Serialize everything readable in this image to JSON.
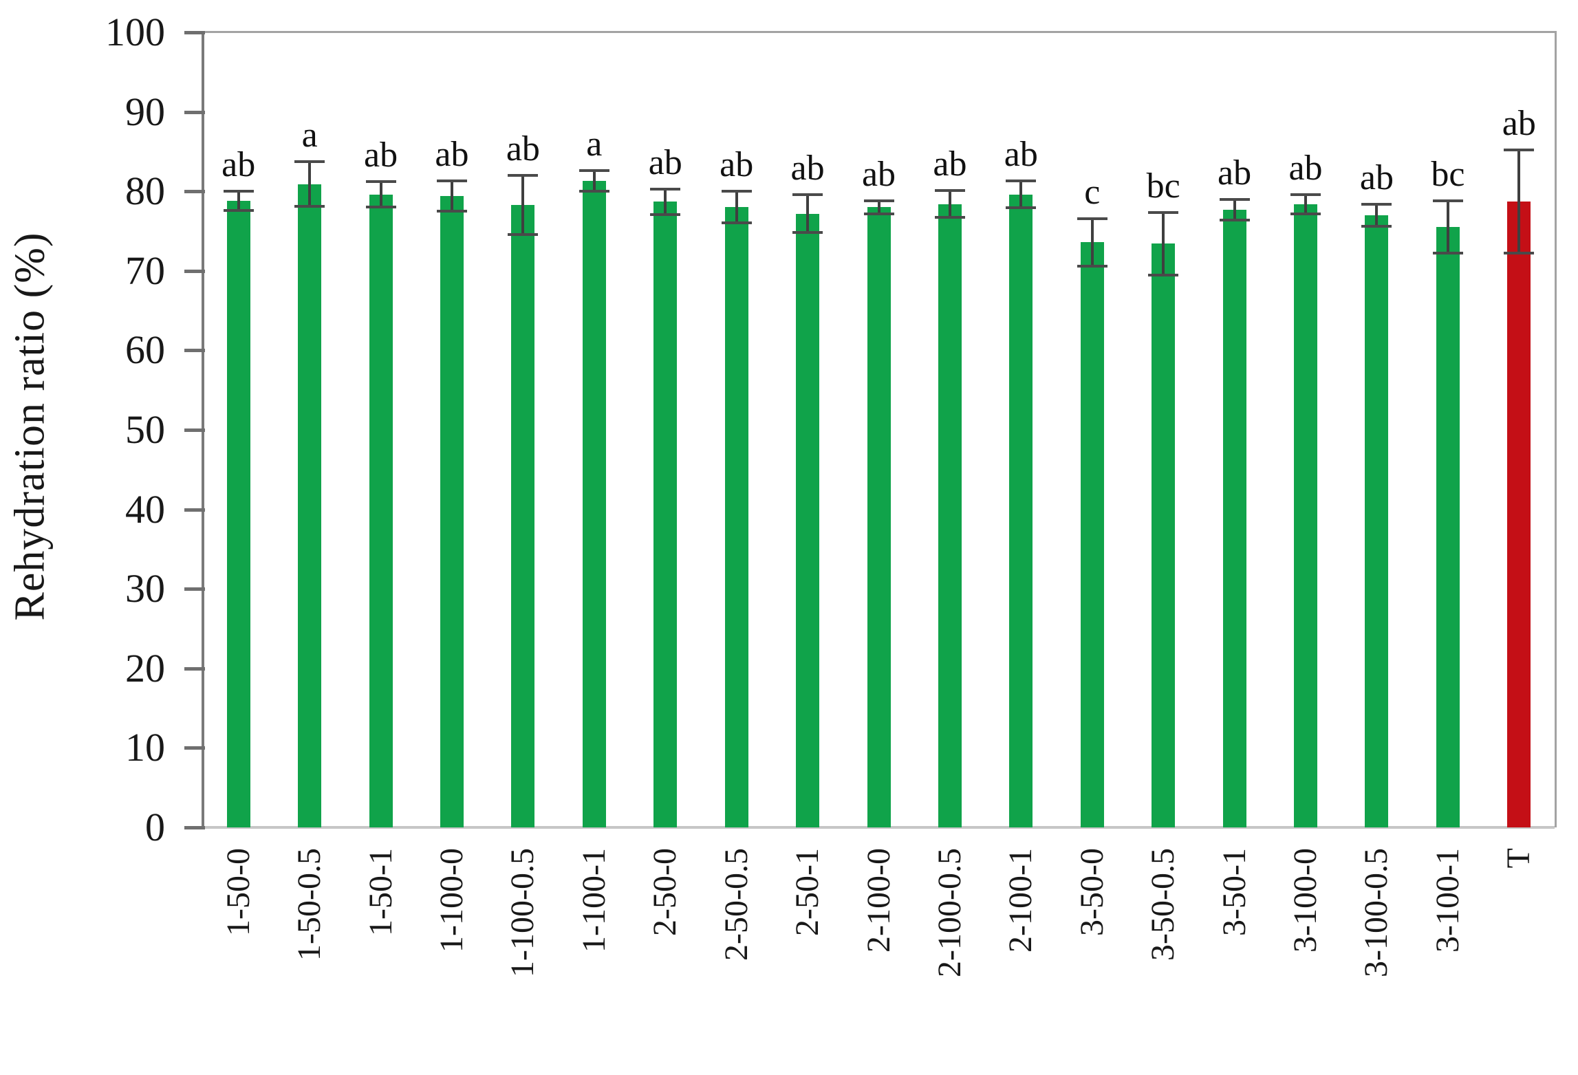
{
  "chart_data": {
    "type": "bar",
    "title": "",
    "xlabel": "",
    "ylabel": "Rehydration ratio (%)",
    "ylim": [
      0,
      100
    ],
    "yticks": [
      0,
      10,
      20,
      30,
      40,
      50,
      60,
      70,
      80,
      90,
      100
    ],
    "grid": false,
    "legend": "none",
    "categories": [
      "1-50-0",
      "1-50-0.5",
      "1-50-1",
      "1-100-0",
      "1-100-0.5",
      "1-100-1",
      "2-50-0",
      "2-50-0.5",
      "2-50-1",
      "2-100-0",
      "2-100-0.5",
      "2-100-1",
      "3-50-0",
      "3-50-0.5",
      "3-50-1",
      "3-100-0",
      "3-100-0.5",
      "3-100-1",
      "T"
    ],
    "values": [
      78.8,
      80.9,
      79.6,
      79.4,
      78.3,
      81.3,
      78.7,
      78.0,
      77.2,
      78.0,
      78.4,
      79.6,
      73.6,
      73.4,
      77.7,
      78.4,
      77.0,
      75.5,
      78.7
    ],
    "errors": [
      1.2,
      2.8,
      1.6,
      1.9,
      3.7,
      1.3,
      1.6,
      2.0,
      2.4,
      0.8,
      1.7,
      1.7,
      3.0,
      3.9,
      1.3,
      1.2,
      1.4,
      3.3,
      6.5
    ],
    "significance_letters": [
      "ab",
      "a",
      "ab",
      "ab",
      "ab",
      "a",
      "ab",
      "ab",
      "ab",
      "ab",
      "ab",
      "ab",
      "c",
      "bc",
      "ab",
      "ab",
      "ab",
      "bc",
      "ab"
    ],
    "bar_color_default": "#10A34A",
    "bar_color_highlight": "#C40F16",
    "highlight_index": 18,
    "error_bar_color": "#3f3f3f"
  }
}
